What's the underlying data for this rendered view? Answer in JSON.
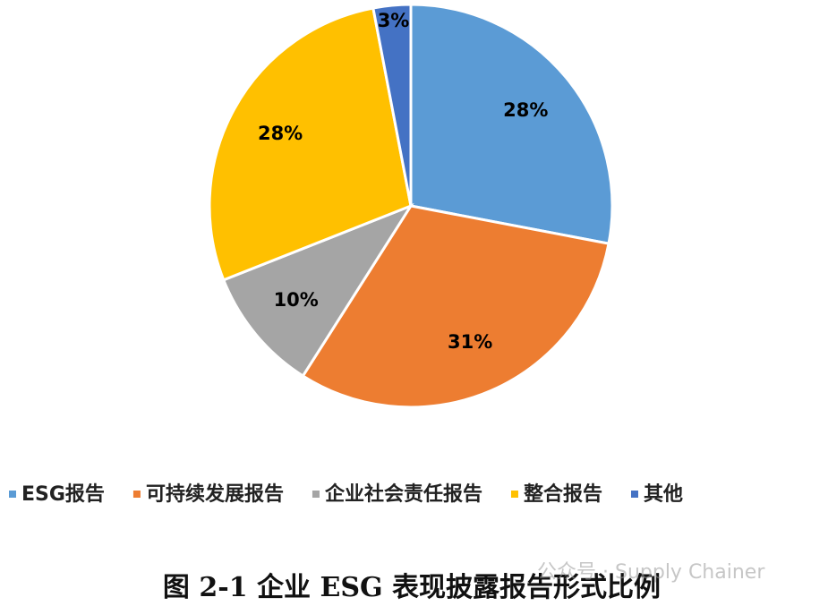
{
  "chart_data": {
    "type": "pie",
    "title": "图 2-1 企业 ESG 表现披露报告形式比例",
    "categories": [
      "ESG报告",
      "可持续发展报告",
      "企业社会责任报告",
      "整合报告",
      "其他"
    ],
    "values": [
      28,
      31,
      10,
      28,
      3
    ],
    "value_labels": [
      "28%",
      "31%",
      "10%",
      "28%",
      "3%"
    ],
    "colors": [
      "#5b9bd5",
      "#ed7d31",
      "#a5a5a5",
      "#ffc000",
      "#4472c4"
    ],
    "legend": "bottom"
  },
  "watermark": "公众号 · Supply Chainer"
}
